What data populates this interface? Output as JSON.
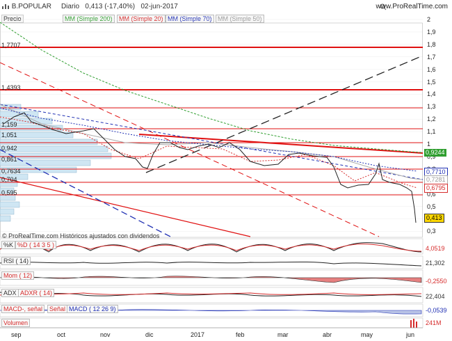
{
  "header": {
    "symbol": "B.POPULAR",
    "period": "Diario",
    "quote": "0,413 (-17,40%)",
    "date": "02-jun-2017",
    "site": "www.ProRealTime.com",
    "icons": [
      "search-icon",
      "chevron-down-icon",
      "chevron-up-icon",
      "close-icon",
      "expand-icon"
    ]
  },
  "legend": {
    "price": "Precio",
    "ma200": "MM (Simple 200)",
    "ma20": "MM (Simple 20)",
    "ma70": "MM (Simple 70)",
    "ma50": "MM (Simple 50)"
  },
  "colors": {
    "ma200": "#2f9e2f",
    "ma20": "#d62b2b",
    "ma70": "#1f2fb3",
    "ma50": "#aaaaaa",
    "price_tag": "#ffd800",
    "red": "#e01010",
    "dark": "#222222"
  },
  "price_axis": {
    "ticks": [
      "2",
      "1,9",
      "1,8",
      "1,7",
      "1,6",
      "1,5",
      "1,4",
      "1,3",
      "1,2",
      "1,1",
      "1",
      "0,9",
      "0,8",
      "0,7",
      "0,6",
      "0,5",
      "0,4",
      "0,3"
    ],
    "tags": {
      "last": "0,413",
      "ma200": "0,9244",
      "ma70": "0,7710",
      "ma50": "0,7281",
      "ma20": "0,6795"
    }
  },
  "volume_profile_levels": [
    "1,7707",
    "1,4393",
    "1,159",
    "1,051",
    "0,942",
    "0,861",
    "0,7634",
    "0,704",
    "0,595"
  ],
  "watermark": "© ProRealTime.com  Históricos ajustados con dividendos",
  "indicators": [
    {
      "id": "stoch",
      "labels": [
        "%K",
        "%D ( 14 3 5 )"
      ],
      "value": "4,0519"
    },
    {
      "id": "rsi",
      "labels": [
        "RSI ( 14)"
      ],
      "value": "21,302"
    },
    {
      "id": "mom",
      "labels": [
        "Mom ( 12)"
      ],
      "value": "-0,2550"
    },
    {
      "id": "adx",
      "labels": [
        "ADX",
        "ADXR ( 14)"
      ],
      "value": "22,404"
    },
    {
      "id": "macd",
      "labels": [
        "MACD-, señal",
        "Señal",
        "MACD ( 12 26 9)"
      ],
      "value": "-0,0539"
    },
    {
      "id": "vol",
      "labels": [
        "Volumen"
      ],
      "value": "241M"
    }
  ],
  "x_axis": [
    "sep",
    "oct",
    "nov",
    "dic",
    "2017",
    "feb",
    "mar",
    "abr",
    "may",
    "jun"
  ]
}
